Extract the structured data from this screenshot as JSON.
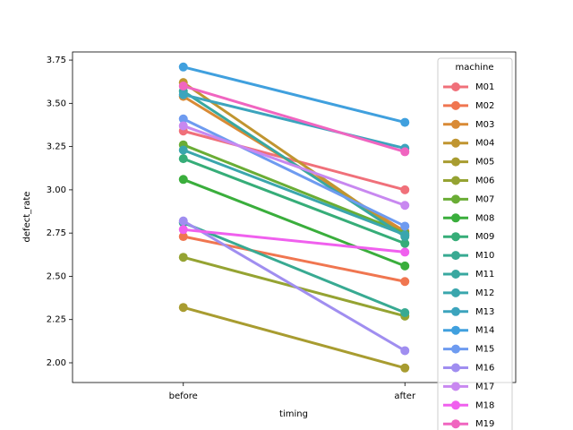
{
  "chart_data": {
    "type": "pointplot",
    "x_label": "timing",
    "y_label": "defect_rate",
    "categories": [
      "before",
      "after"
    ],
    "ylim": [
      1.886,
      3.797
    ],
    "yticks": [
      {
        "value": 2.0,
        "label": "2.00"
      },
      {
        "value": 2.25,
        "label": "2.25"
      },
      {
        "value": 2.5,
        "label": "2.50"
      },
      {
        "value": 2.75,
        "label": "2.75"
      },
      {
        "value": 3.0,
        "label": "3.00"
      },
      {
        "value": 3.25,
        "label": "3.25"
      },
      {
        "value": 3.5,
        "label": "3.50"
      },
      {
        "value": 3.75,
        "label": "3.75"
      }
    ],
    "legend_title": "machine",
    "legend_position": "upper right",
    "series": [
      {
        "name": "M01",
        "color": "#f0707a",
        "values": [
          3.34,
          3.0
        ]
      },
      {
        "name": "M02",
        "color": "#f07650",
        "values": [
          2.73,
          2.47
        ]
      },
      {
        "name": "M03",
        "color": "#d98a35",
        "values": [
          3.54,
          2.76
        ]
      },
      {
        "name": "M04",
        "color": "#c09530",
        "values": [
          3.62,
          2.74
        ]
      },
      {
        "name": "M05",
        "color": "#a89c30",
        "values": [
          2.32,
          1.97
        ]
      },
      {
        "name": "M06",
        "color": "#95a332",
        "values": [
          2.61,
          2.27
        ]
      },
      {
        "name": "M07",
        "color": "#6aad35",
        "values": [
          3.26,
          2.75
        ]
      },
      {
        "name": "M08",
        "color": "#3aae3c",
        "values": [
          3.06,
          2.56
        ]
      },
      {
        "name": "M09",
        "color": "#36ad78",
        "values": [
          3.18,
          2.69
        ]
      },
      {
        "name": "M10",
        "color": "#38aa92",
        "values": [
          2.81,
          2.29
        ]
      },
      {
        "name": "M11",
        "color": "#39a8a0",
        "values": [
          3.57,
          2.73
        ]
      },
      {
        "name": "M12",
        "color": "#3aa6ad",
        "values": [
          3.23,
          2.74
        ]
      },
      {
        "name": "M13",
        "color": "#3ca4bd",
        "values": [
          3.55,
          3.24
        ]
      },
      {
        "name": "M14",
        "color": "#40a0de",
        "values": [
          3.71,
          3.39
        ]
      },
      {
        "name": "M15",
        "color": "#6e9bf0",
        "values": [
          3.41,
          2.79
        ]
      },
      {
        "name": "M16",
        "color": "#a08ef0",
        "values": [
          2.82,
          2.07
        ]
      },
      {
        "name": "M17",
        "color": "#c888f0",
        "values": [
          3.37,
          2.91
        ]
      },
      {
        "name": "M18",
        "color": "#f060ee",
        "values": [
          2.77,
          2.64
        ]
      },
      {
        "name": "M19",
        "color": "#f065c0",
        "values": [
          3.6,
          3.22
        ]
      }
    ]
  }
}
